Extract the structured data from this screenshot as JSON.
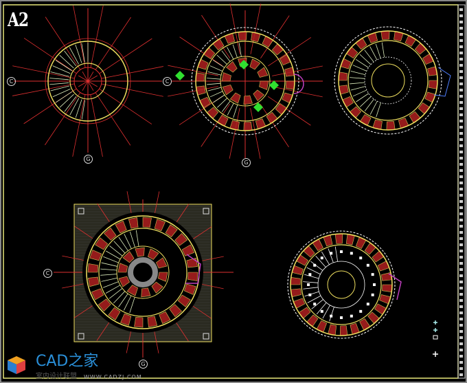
{
  "sheet": {
    "title": "A2"
  },
  "axis_labels": {
    "left": "C",
    "bottom": "G"
  },
  "plans": [
    {
      "id": "plan-1"
    },
    {
      "id": "plan-2"
    },
    {
      "id": "plan-3"
    },
    {
      "id": "plan-4"
    },
    {
      "id": "plan-5"
    }
  ],
  "colors": {
    "frame": "#e8e87a",
    "axis": "#e03030",
    "wall": "#f0e060",
    "room": "#b02020",
    "stair": "#e0f0c0",
    "dim": "#ffffff",
    "marker": "#30e030",
    "accent": "#5080ff"
  },
  "logo": {
    "brand": "CAD之家",
    "url": "WWW.CADZJ.COM",
    "watermark": "室内设计联盟"
  }
}
